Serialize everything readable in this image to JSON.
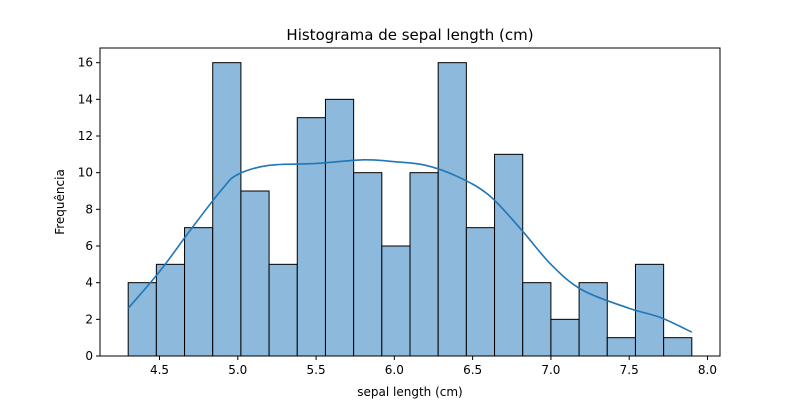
{
  "chart_data": {
    "type": "bar",
    "title": "Histograma de sepal length (cm)",
    "xlabel": "sepal length (cm)",
    "ylabel": "Frequência",
    "xlim": [
      4.12,
      8.08
    ],
    "ylim": [
      0,
      16.8
    ],
    "bin_start": 4.3,
    "bin_width": 0.18,
    "counts": [
      4,
      5,
      7,
      16,
      9,
      5,
      13,
      14,
      10,
      6,
      10,
      16,
      7,
      11,
      4,
      2,
      4,
      1,
      5,
      1
    ],
    "x_ticks": [
      4.5,
      5.0,
      5.5,
      6.0,
      6.5,
      7.0,
      7.5,
      8.0
    ],
    "x_tick_labels": [
      "4.5",
      "5.0",
      "5.5",
      "6.0",
      "6.5",
      "7.0",
      "7.5",
      "8.0"
    ],
    "y_ticks": [
      0,
      2,
      4,
      6,
      8,
      10,
      12,
      14,
      16
    ],
    "y_tick_labels": [
      "0",
      "2",
      "4",
      "6",
      "8",
      "10",
      "12",
      "14",
      "16"
    ],
    "kde": {
      "x": [
        4.3,
        4.5,
        4.7,
        4.9,
        5.0,
        5.2,
        5.5,
        5.8,
        6.0,
        6.2,
        6.4,
        6.6,
        6.8,
        7.0,
        7.2,
        7.5,
        7.7,
        7.9
      ],
      "y": [
        2.6,
        4.6,
        6.9,
        9.1,
        9.9,
        10.4,
        10.5,
        10.7,
        10.6,
        10.4,
        9.8,
        8.8,
        7.0,
        5.0,
        3.6,
        2.6,
        2.1,
        1.3
      ]
    },
    "grid": false,
    "bar_color": "#8cb9dc",
    "edge_color": "#000000",
    "kde_color": "#1f77b4"
  }
}
